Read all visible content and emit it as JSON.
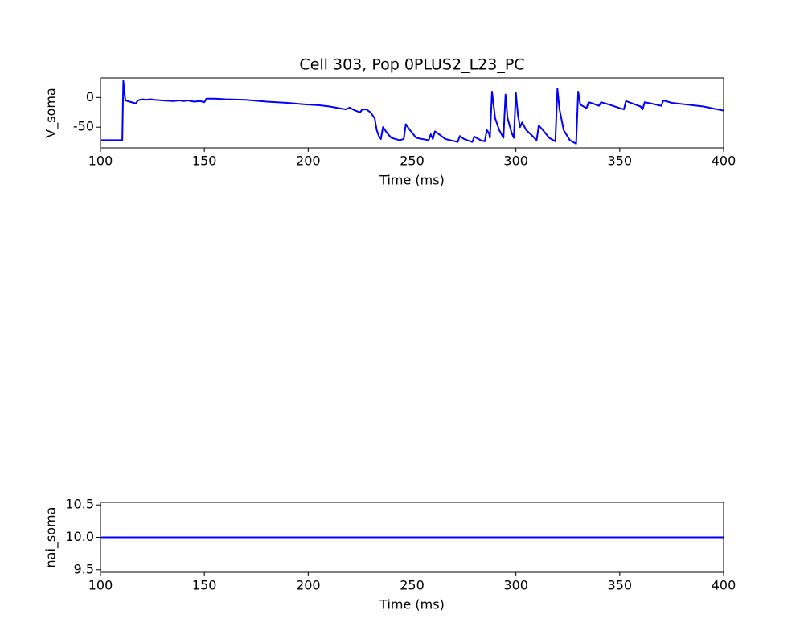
{
  "chart_data": [
    {
      "type": "line",
      "title": "Cell 303, Pop 0PLUS2_L23_PC",
      "xlabel": "Time (ms)",
      "ylabel": "V_soma",
      "color": "#0000ff",
      "xlim": [
        100,
        400
      ],
      "xticks": [
        100,
        150,
        200,
        250,
        300,
        350,
        400
      ],
      "ylim": [
        -85,
        33
      ],
      "yticks": [
        -50,
        0
      ],
      "x": [
        100,
        110.5,
        111,
        112,
        115,
        117,
        118,
        120,
        122,
        124,
        126,
        130,
        135,
        138,
        140,
        142,
        145,
        148,
        150,
        151,
        155,
        160,
        170,
        180,
        190,
        200,
        205,
        210,
        215,
        218,
        220,
        222,
        225,
        226,
        228,
        230,
        232,
        233,
        234,
        235,
        236,
        238,
        240,
        244,
        246,
        247,
        249,
        252,
        258,
        259,
        260,
        261,
        263,
        266,
        272,
        273,
        275,
        279,
        280,
        283,
        285,
        286,
        287,
        287.5,
        288.5,
        290,
        292,
        294,
        295,
        296,
        298,
        299,
        300,
        301,
        302,
        303,
        305,
        308,
        310,
        311,
        313,
        316,
        319,
        320,
        321,
        323,
        326,
        329,
        330,
        331,
        334,
        335,
        337,
        340,
        341,
        345,
        350,
        352,
        353,
        356,
        360,
        361,
        362,
        365,
        370,
        371,
        375,
        380,
        390,
        400
      ],
      "values": [
        -72,
        -72,
        28,
        -5,
        -8,
        -10,
        -5,
        -3,
        -4,
        -3,
        -4,
        -5,
        -6,
        -5,
        -6,
        -5,
        -7,
        -6,
        -8,
        -2,
        -2,
        -3,
        -4,
        -7,
        -9,
        -12,
        -13,
        -15,
        -18,
        -20,
        -17,
        -21,
        -25,
        -20,
        -20,
        -25,
        -35,
        -55,
        -65,
        -70,
        -50,
        -60,
        -68,
        -72,
        -70,
        -45,
        -55,
        -68,
        -72,
        -62,
        -70,
        -57,
        -62,
        -70,
        -75,
        -65,
        -70,
        -75,
        -66,
        -72,
        -74,
        -55,
        -60,
        -68,
        10,
        -35,
        -55,
        -68,
        5,
        -35,
        -60,
        -68,
        8,
        -30,
        -50,
        -42,
        -55,
        -65,
        -72,
        -47,
        -55,
        -68,
        -74,
        15,
        -20,
        -55,
        -72,
        -78,
        10,
        -12,
        -18,
        -8,
        -10,
        -14,
        -8,
        -12,
        -18,
        -20,
        -6,
        -10,
        -15,
        -20,
        -8,
        -10,
        -14,
        -5,
        -9,
        -11,
        -15,
        -22
      ]
    },
    {
      "type": "line",
      "xlabel": "Time (ms)",
      "ylabel": "nai_soma",
      "color": "#0000ff",
      "xlim": [
        100,
        400
      ],
      "xticks": [
        100,
        150,
        200,
        250,
        300,
        350,
        400
      ],
      "ylim": [
        9.46,
        10.54
      ],
      "yticks": [
        9.5,
        {
          "value": 10,
          "label": "10.0"
        },
        10.5
      ],
      "x": [
        100,
        400
      ],
      "values": [
        10,
        10
      ]
    }
  ]
}
